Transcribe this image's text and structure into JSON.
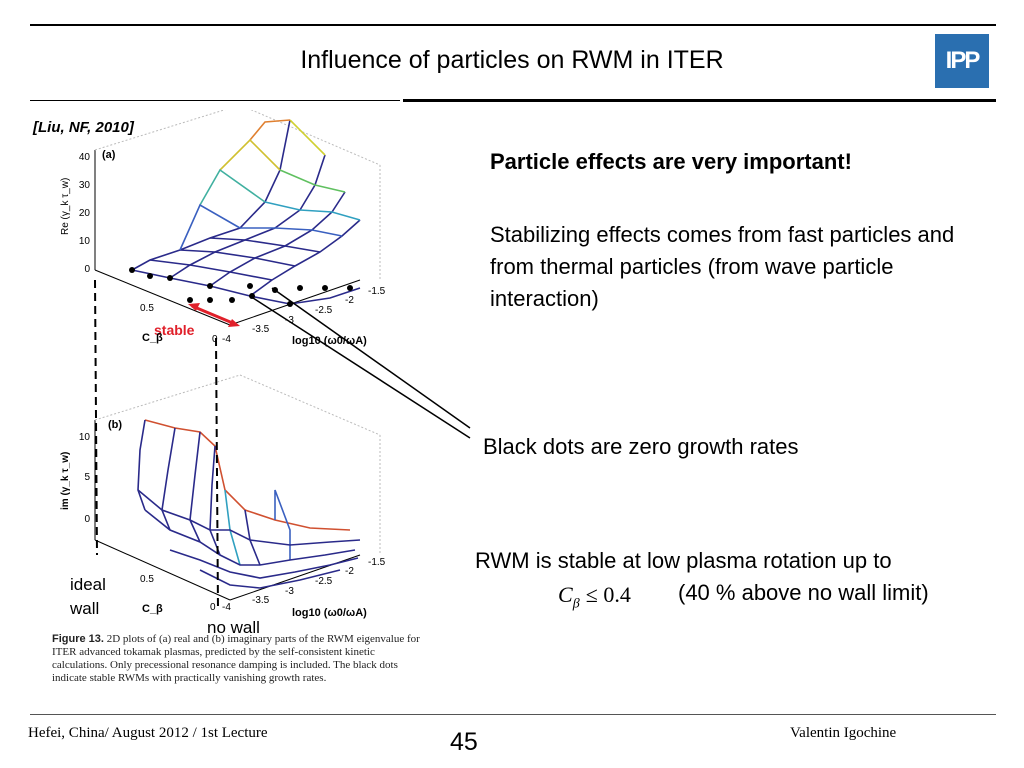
{
  "slide": {
    "title": "Influence of particles on RWM in ITER",
    "logo_text": "IPP",
    "citation": "[Liu, NF, 2010]",
    "heading": "Particle effects are very important!",
    "paragraph1": "Stabilizing effects comes from fast particles and from thermal particles (from wave particle interaction)",
    "dots_note": "Black dots are zero growth rates",
    "rwm_note_before": "RWM is stable at low plasma rotation up to",
    "rwm_formula": "C",
    "rwm_formula_sub": "β",
    "rwm_formula_rel": "≤ 0.4",
    "rwm_note_after": "(40 % above no wall limit)"
  },
  "figure": {
    "panel_a": {
      "label": "(a)",
      "z_label": "Re (γ_k τ_w)",
      "z_ticks": [
        "40",
        "30",
        "20",
        "10",
        "0"
      ],
      "x_label": "C_β",
      "x_ticks": [
        "0.5",
        "0"
      ],
      "y_label": "log10 (ω0/ωA)",
      "y_ticks": [
        "-4",
        "-3.5",
        "-3",
        "-2.5",
        "-2",
        "-1.5"
      ],
      "stable_label": "stable"
    },
    "panel_b": {
      "label": "(b)",
      "z_label": "im (γ_k τ_w)",
      "z_ticks": [
        "10",
        "5",
        "0"
      ],
      "x_label": "C_β",
      "x_ticks": [
        "0.5",
        "0"
      ],
      "y_label": "log10 (ω0/ωA)",
      "y_ticks": [
        "-4",
        "-3.5",
        "-3",
        "-2.5",
        "-2",
        "-1.5"
      ]
    },
    "ideal_wall_line1": "ideal",
    "ideal_wall_line2": "wall",
    "no_wall": "no wall",
    "caption_label": "Figure 13.",
    "caption_text": "2D plots of (a) real and (b) imaginary parts of the RWM eigenvalue for ITER advanced tokamak plasmas, predicted by the self-consistent kinetic calculations. Only precessional resonance damping is included. The black dots indicate stable RWMs with practically vanishing growth rates."
  },
  "footer": {
    "left": "Hefei, China/ August 2012 / 1st Lecture",
    "page": "45",
    "right": "Valentin Igochine"
  },
  "colors": {
    "mesh": "#2a2a8a",
    "highlight": "#e0202a",
    "logo": "#2a6fb0"
  }
}
